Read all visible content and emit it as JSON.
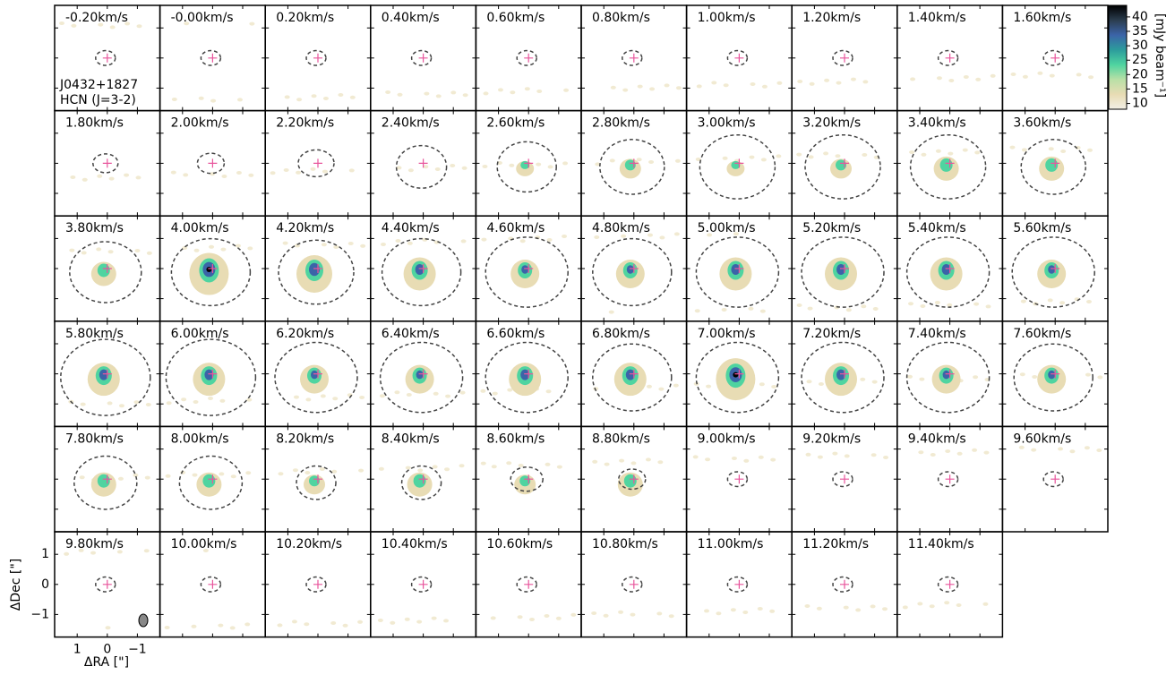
{
  "chart_data": {
    "type": "channel_map",
    "source": "J0432+1827",
    "line": "HCN (J=3-2)",
    "channels": [
      "-0.20km/s",
      "-0.00km/s",
      "0.20km/s",
      "0.40km/s",
      "0.60km/s",
      "0.80km/s",
      "1.00km/s",
      "1.20km/s",
      "1.40km/s",
      "1.60km/s",
      "1.80km/s",
      "2.00km/s",
      "2.20km/s",
      "2.40km/s",
      "2.60km/s",
      "2.80km/s",
      "3.00km/s",
      "3.20km/s",
      "3.40km/s",
      "3.60km/s",
      "3.80km/s",
      "4.00km/s",
      "4.20km/s",
      "4.40km/s",
      "4.60km/s",
      "4.80km/s",
      "5.00km/s",
      "5.20km/s",
      "5.40km/s",
      "5.60km/s",
      "5.80km/s",
      "6.00km/s",
      "6.20km/s",
      "6.40km/s",
      "6.60km/s",
      "6.80km/s",
      "7.00km/s",
      "7.20km/s",
      "7.40km/s",
      "7.60km/s",
      "7.80km/s",
      "8.00km/s",
      "8.20km/s",
      "8.40km/s",
      "8.60km/s",
      "8.80km/s",
      "9.00km/s",
      "9.20km/s",
      "9.40km/s",
      "9.60km/s",
      "9.80km/s",
      "10.00km/s",
      "10.20km/s",
      "10.40km/s",
      "10.60km/s",
      "10.80km/s",
      "11.00km/s",
      "11.20km/s",
      "11.40km/s"
    ],
    "xlabel": "ΔRA [\"]",
    "ylabel": "ΔDec [\"]",
    "xlim": [
      1.75,
      -1.75
    ],
    "ylim": [
      -1.75,
      1.75
    ],
    "xticks": [
      1,
      0,
      {
        "value": -1,
        "label": "−1"
      }
    ],
    "yticks": [
      1,
      0,
      {
        "value": -1,
        "label": "−1"
      }
    ],
    "colorbar": {
      "label": "[mJy beam⁻¹]",
      "clim": [
        8,
        44
      ],
      "ticks": [
        10,
        15,
        20,
        25,
        30,
        35,
        40
      ],
      "colormap": [
        "#f2efe6",
        "#e8dcb4",
        "#b9e0a6",
        "#4fd4a0",
        "#2c9c9c",
        "#3b64a8",
        "#2b3d4e",
        "#000000"
      ]
    },
    "marker_color": "#e8559c"
  }
}
